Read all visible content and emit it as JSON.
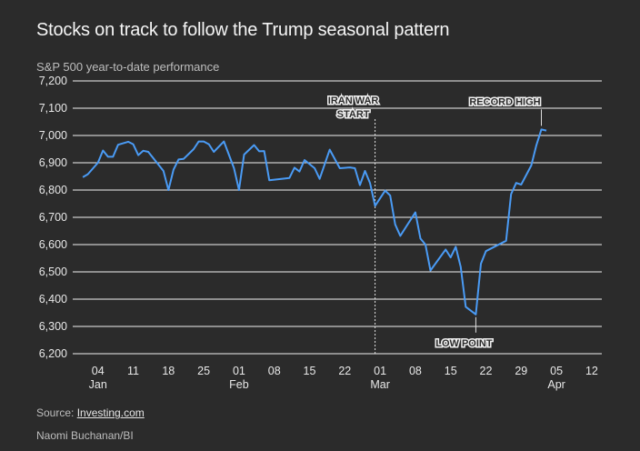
{
  "title": "Stocks on track to follow the Trump seasonal pattern",
  "subtitle": "S&P 500 year-to-date performance",
  "source_prefix": "Source: ",
  "source_link": "Investing.com",
  "credit": "Naomi Buchanan/BI",
  "colors": {
    "line": "#4a9bf5",
    "grid": "#f0f0f0",
    "background": "#2b2b2b"
  },
  "chart_data": {
    "type": "line",
    "title": "Stocks on track to follow the Trump seasonal pattern",
    "ylabel": "S&P 500 year-to-date performance",
    "xlabel": "",
    "ylim": [
      6200,
      7200
    ],
    "yticks": [
      6200,
      6300,
      6400,
      6500,
      6600,
      6700,
      6800,
      6900,
      7000,
      7100,
      7200
    ],
    "ytick_labels": [
      "6,200",
      "6,300",
      "6,400",
      "6,500",
      "6,600",
      "6,700",
      "6,800",
      "6,900",
      "7,000",
      "7,100",
      "7,200"
    ],
    "x_range": [
      -2,
      103
    ],
    "xticks": [
      {
        "day": 3,
        "label": "04",
        "month": "Jan"
      },
      {
        "day": 10,
        "label": "11",
        "month": ""
      },
      {
        "day": 17,
        "label": "18",
        "month": ""
      },
      {
        "day": 24,
        "label": "25",
        "month": ""
      },
      {
        "day": 31,
        "label": "01",
        "month": "Feb"
      },
      {
        "day": 38,
        "label": "08",
        "month": ""
      },
      {
        "day": 45,
        "label": "15",
        "month": ""
      },
      {
        "day": 52,
        "label": "22",
        "month": ""
      },
      {
        "day": 59,
        "label": "01",
        "month": "Mar"
      },
      {
        "day": 66,
        "label": "08",
        "month": ""
      },
      {
        "day": 73,
        "label": "15",
        "month": ""
      },
      {
        "day": 80,
        "label": "22",
        "month": ""
      },
      {
        "day": 87,
        "label": "29",
        "month": ""
      },
      {
        "day": 94,
        "label": "05",
        "month": "Apr"
      },
      {
        "day": 101,
        "label": "12",
        "month": ""
      }
    ],
    "series": [
      {
        "name": "S&P 500",
        "points": [
          [
            0,
            6847
          ],
          [
            1,
            6858
          ],
          [
            3,
            6900
          ],
          [
            4,
            6945
          ],
          [
            5,
            6922
          ],
          [
            6,
            6922
          ],
          [
            7,
            6966
          ],
          [
            9,
            6977
          ],
          [
            10,
            6968
          ],
          [
            11,
            6928
          ],
          [
            12,
            6944
          ],
          [
            13,
            6940
          ],
          [
            16,
            6870
          ],
          [
            17,
            6800
          ],
          [
            18,
            6875
          ],
          [
            19,
            6912
          ],
          [
            20,
            6914
          ],
          [
            21,
            6932
          ],
          [
            22,
            6950
          ],
          [
            23,
            6978
          ],
          [
            24,
            6978
          ],
          [
            25,
            6968
          ],
          [
            26,
            6940
          ],
          [
            28,
            6978
          ],
          [
            30,
            6880
          ],
          [
            31,
            6800
          ],
          [
            32,
            6930
          ],
          [
            34,
            6965
          ],
          [
            35,
            6942
          ],
          [
            36,
            6943
          ],
          [
            37,
            6836
          ],
          [
            41,
            6844
          ],
          [
            42,
            6882
          ],
          [
            43,
            6868
          ],
          [
            44,
            6910
          ],
          [
            46,
            6880
          ],
          [
            47,
            6841
          ],
          [
            49,
            6948
          ],
          [
            51,
            6880
          ],
          [
            53,
            6883
          ],
          [
            54,
            6880
          ],
          [
            55,
            6818
          ],
          [
            56,
            6870
          ],
          [
            57,
            6826
          ],
          [
            58,
            6742
          ],
          [
            60,
            6798
          ],
          [
            61,
            6780
          ],
          [
            62,
            6674
          ],
          [
            63,
            6632
          ],
          [
            66,
            6718
          ],
          [
            67,
            6622
          ],
          [
            68,
            6600
          ],
          [
            69,
            6505
          ],
          [
            72,
            6582
          ],
          [
            73,
            6553
          ],
          [
            74,
            6592
          ],
          [
            75,
            6518
          ],
          [
            76,
            6372
          ],
          [
            78,
            6344
          ],
          [
            79,
            6530
          ],
          [
            80,
            6576
          ],
          [
            84,
            6614
          ],
          [
            85,
            6785
          ],
          [
            86,
            6826
          ],
          [
            87,
            6820
          ],
          [
            89,
            6890
          ],
          [
            90,
            6963
          ],
          [
            91,
            7022
          ],
          [
            92,
            7018
          ]
        ]
      }
    ],
    "annotations": [
      {
        "text": "IRAN WAR START",
        "line1": "IRAN WAR",
        "line2": "START",
        "day": 58,
        "value_top": 7060,
        "value_bottom": 6200,
        "style": "dashed"
      },
      {
        "text": "LOW POINT",
        "day": 78,
        "value": 6344,
        "position": "below"
      },
      {
        "text": "RECORD HIGH",
        "day": 91,
        "value": 7022,
        "position": "above"
      }
    ]
  }
}
